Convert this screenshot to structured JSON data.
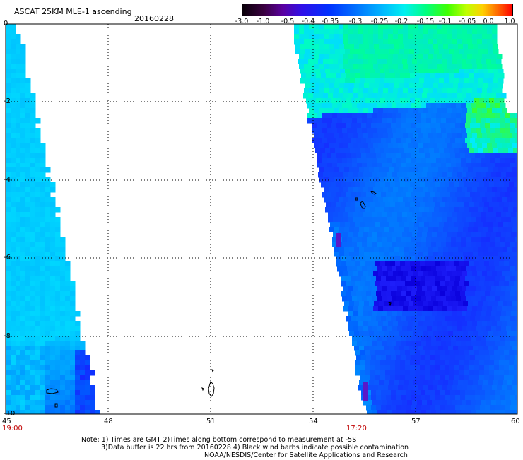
{
  "header": {
    "title": "ASCAT 25KM MLE-1 ascending",
    "date": "20160228"
  },
  "colorbar": {
    "labels": [
      "-3.0",
      "-1.0",
      "-0.5",
      "-0.4",
      "-0.35",
      "-0.3",
      "-0.25",
      "-0.2",
      "-0.15",
      "-0.1",
      "-0.05",
      "0.0",
      "1.0"
    ],
    "colors": [
      "#100010",
      "#48005a",
      "#6a00c8",
      "#2020ff",
      "#0050ff",
      "#0098ff",
      "#00e0ff",
      "#00ff90",
      "#40ff00",
      "#b0ff00",
      "#ffe000",
      "#ff6000",
      "#ff0000"
    ]
  },
  "axes": {
    "x_ticks": [
      "45",
      "48",
      "51",
      "54",
      "57",
      "60"
    ],
    "y_ticks": [
      "0",
      "-2",
      "-4",
      "-6",
      "-8",
      "-10"
    ],
    "lon_range": [
      45,
      60
    ],
    "lat_range": [
      -10,
      0
    ]
  },
  "time_labels": [
    "19:00",
    "17:20"
  ],
  "footer": {
    "note_line1": "Note: 1) Times are GMT 2)Times along bottom correspond to measurement at -5S",
    "note_line2": "3)Data buffer is 22 hrs from 20160228 4) Black wind barbs indicate possible contamination",
    "credit": "NOAA/NESDIS/Center for Satellite Applications and Research"
  }
}
